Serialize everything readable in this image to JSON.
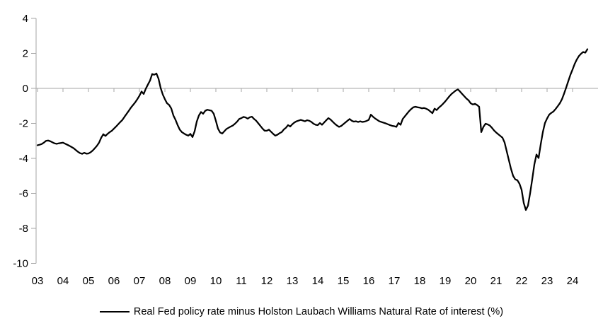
{
  "page": {
    "background": "#ffffff"
  },
  "legend": {
    "label": "Real Fed policy rate minus Holston Laubach Williams Natural Rate of interest (%)"
  },
  "chart_data": {
    "type": "line",
    "title": "",
    "xlabel": "",
    "ylabel": "",
    "ylim": [
      -10,
      4
    ],
    "y_ticks": [
      4,
      2,
      0,
      -2,
      -4,
      -6,
      -8,
      -10
    ],
    "x_tick_labels": [
      "03",
      "04",
      "05",
      "06",
      "07",
      "08",
      "09",
      "10",
      "11",
      "12",
      "13",
      "14",
      "15",
      "16",
      "17",
      "18",
      "19",
      "20",
      "21",
      "22",
      "23",
      "24"
    ],
    "grid": "zero-baseline-only",
    "legend_position": "bottom-center",
    "colors": {
      "line": "#000000",
      "axis": "#a6a6a6",
      "tick_label": "#000000",
      "background": "#ffffff"
    },
    "series": [
      {
        "name": "Real Fed policy rate minus Holston Laubach Williams Natural Rate of interest (%)",
        "start_year": 2003,
        "frequency": "monthly",
        "values": [
          -3.25,
          -3.22,
          -3.18,
          -3.1,
          -3.0,
          -2.98,
          -3.02,
          -3.08,
          -3.14,
          -3.17,
          -3.14,
          -3.12,
          -3.1,
          -3.16,
          -3.22,
          -3.28,
          -3.35,
          -3.42,
          -3.52,
          -3.62,
          -3.7,
          -3.74,
          -3.68,
          -3.73,
          -3.72,
          -3.65,
          -3.55,
          -3.42,
          -3.28,
          -3.1,
          -2.82,
          -2.62,
          -2.72,
          -2.6,
          -2.5,
          -2.42,
          -2.3,
          -2.18,
          -2.05,
          -1.92,
          -1.8,
          -1.62,
          -1.45,
          -1.28,
          -1.1,
          -0.95,
          -0.8,
          -0.62,
          -0.42,
          -0.18,
          -0.32,
          -0.02,
          0.22,
          0.45,
          0.82,
          0.78,
          0.85,
          0.55,
          0.02,
          -0.35,
          -0.62,
          -0.85,
          -0.95,
          -1.15,
          -1.55,
          -1.8,
          -2.1,
          -2.36,
          -2.5,
          -2.58,
          -2.65,
          -2.7,
          -2.6,
          -2.78,
          -2.45,
          -1.9,
          -1.55,
          -1.35,
          -1.45,
          -1.28,
          -1.22,
          -1.25,
          -1.28,
          -1.45,
          -1.85,
          -2.3,
          -2.52,
          -2.58,
          -2.45,
          -2.32,
          -2.25,
          -2.18,
          -2.12,
          -2.02,
          -1.9,
          -1.75,
          -1.7,
          -1.63,
          -1.66,
          -1.73,
          -1.65,
          -1.62,
          -1.75,
          -1.85,
          -2.0,
          -2.15,
          -2.3,
          -2.42,
          -2.42,
          -2.36,
          -2.48,
          -2.6,
          -2.7,
          -2.65,
          -2.56,
          -2.5,
          -2.35,
          -2.25,
          -2.1,
          -2.18,
          -2.05,
          -1.95,
          -1.88,
          -1.84,
          -1.8,
          -1.84,
          -1.88,
          -1.82,
          -1.85,
          -1.92,
          -2.02,
          -2.08,
          -2.1,
          -1.98,
          -2.08,
          -1.95,
          -1.82,
          -1.7,
          -1.78,
          -1.9,
          -2.02,
          -2.12,
          -2.2,
          -2.15,
          -2.05,
          -1.95,
          -1.85,
          -1.75,
          -1.85,
          -1.9,
          -1.88,
          -1.92,
          -1.88,
          -1.92,
          -1.9,
          -1.86,
          -1.8,
          -1.5,
          -1.62,
          -1.72,
          -1.8,
          -1.88,
          -1.92,
          -1.96,
          -2.0,
          -2.05,
          -2.1,
          -2.14,
          -2.16,
          -2.2,
          -1.98,
          -2.08,
          -1.75,
          -1.6,
          -1.45,
          -1.3,
          -1.18,
          -1.08,
          -1.05,
          -1.08,
          -1.1,
          -1.14,
          -1.12,
          -1.16,
          -1.22,
          -1.32,
          -1.42,
          -1.16,
          -1.24,
          -1.1,
          -1.0,
          -0.88,
          -0.75,
          -0.6,
          -0.45,
          -0.32,
          -0.22,
          -0.12,
          -0.06,
          -0.18,
          -0.32,
          -0.45,
          -0.58,
          -0.68,
          -0.85,
          -0.92,
          -0.88,
          -0.95,
          -1.05,
          -2.5,
          -2.2,
          -2.02,
          -2.06,
          -2.12,
          -2.25,
          -2.4,
          -2.52,
          -2.62,
          -2.72,
          -2.82,
          -3.1,
          -3.6,
          -4.1,
          -4.6,
          -5.0,
          -5.2,
          -5.25,
          -5.45,
          -5.8,
          -6.55,
          -6.95,
          -6.7,
          -6.0,
          -5.2,
          -4.35,
          -3.78,
          -3.98,
          -3.2,
          -2.5,
          -1.98,
          -1.72,
          -1.5,
          -1.4,
          -1.32,
          -1.18,
          -1.02,
          -0.85,
          -0.62,
          -0.3,
          0.05,
          0.42,
          0.78,
          1.08,
          1.4,
          1.65,
          1.85,
          1.98,
          2.08,
          2.04,
          2.24
        ]
      }
    ]
  }
}
